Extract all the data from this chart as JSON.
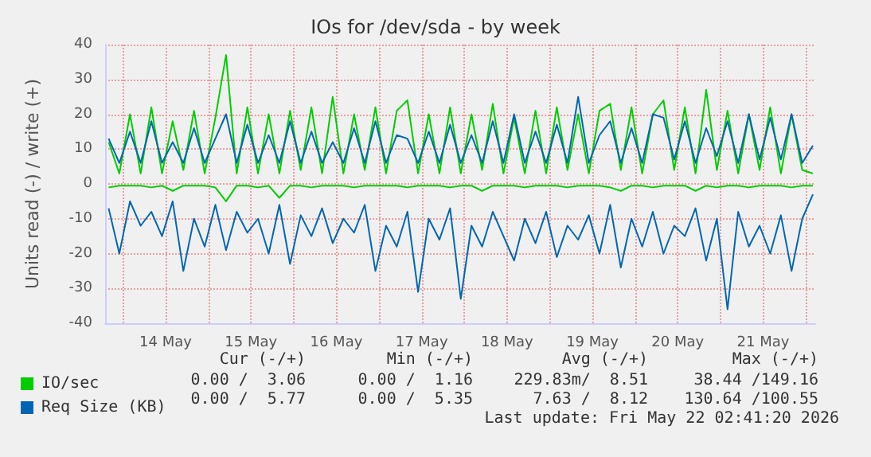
{
  "chart_data": {
    "type": "line",
    "title": "IOs for /dev/sda - by week",
    "ylabel": "Units read (-) / write (+)",
    "x": [
      "2026-05-13T20:00",
      "2026-05-13T23:00",
      "2026-05-14T02:00",
      "2026-05-14T05:00",
      "2026-05-14T08:00",
      "2026-05-14T11:00",
      "2026-05-14T14:00",
      "2026-05-14T17:00",
      "2026-05-14T20:00",
      "2026-05-14T23:00",
      "2026-05-15T02:00",
      "2026-05-15T05:00",
      "2026-05-15T08:00",
      "2026-05-15T11:00",
      "2026-05-15T14:00",
      "2026-05-15T17:00",
      "2026-05-15T20:00",
      "2026-05-15T23:00",
      "2026-05-16T02:00",
      "2026-05-16T05:00",
      "2026-05-16T08:00",
      "2026-05-16T11:00",
      "2026-05-16T14:00",
      "2026-05-16T17:00",
      "2026-05-16T20:00",
      "2026-05-16T23:00",
      "2026-05-17T02:00",
      "2026-05-17T05:00",
      "2026-05-17T08:00",
      "2026-05-17T11:00",
      "2026-05-17T14:00",
      "2026-05-17T17:00",
      "2026-05-17T20:00",
      "2026-05-17T23:00",
      "2026-05-18T02:00",
      "2026-05-18T05:00",
      "2026-05-18T08:00",
      "2026-05-18T11:00",
      "2026-05-18T14:00",
      "2026-05-18T17:00",
      "2026-05-18T20:00",
      "2026-05-18T23:00",
      "2026-05-19T02:00",
      "2026-05-19T05:00",
      "2026-05-19T08:00",
      "2026-05-19T11:00",
      "2026-05-19T14:00",
      "2026-05-19T17:00",
      "2026-05-19T20:00",
      "2026-05-19T23:00",
      "2026-05-20T02:00",
      "2026-05-20T05:00",
      "2026-05-20T08:00",
      "2026-05-20T11:00",
      "2026-05-20T14:00",
      "2026-05-20T17:00",
      "2026-05-20T20:00",
      "2026-05-20T23:00",
      "2026-05-21T02:00",
      "2026-05-21T05:00",
      "2026-05-21T08:00",
      "2026-05-21T11:00",
      "2026-05-21T14:00",
      "2026-05-21T17:00",
      "2026-05-21T20:00",
      "2026-05-21T23:00",
      "2026-05-22T02:00"
    ],
    "series": [
      {
        "color": "#00cc00",
        "values": [
          -1,
          -0.5,
          -0.5,
          -0.5,
          -1,
          -0.5,
          -2,
          -0.5,
          -0.5,
          -0.5,
          -1,
          -5,
          -0.5,
          -0.5,
          -1,
          -0.5,
          -4,
          -0.5,
          -0.5,
          -1,
          -0.5,
          -0.5,
          -0.5,
          -1,
          -0.5,
          -0.5,
          -0.5,
          -0.5,
          -1,
          -0.5,
          -0.5,
          -0.5,
          -1,
          -0.5,
          -0.5,
          -2,
          -0.5,
          -0.5,
          -0.5,
          -1,
          -0.5,
          -0.5,
          -0.5,
          -1,
          -0.5,
          -0.5,
          -0.5,
          -1,
          -2,
          -0.5,
          -0.5,
          -1,
          -0.5,
          -0.5,
          -0.5,
          -2,
          -0.5,
          -1,
          -0.5,
          -0.5,
          -1,
          -0.5,
          -0.5,
          -0.5,
          -1,
          -0.5,
          -0.5
        ]
      },
      {
        "name": "IO/sec",
        "color": "#00cc00",
        "values": [
          12,
          3,
          20,
          3,
          22,
          3,
          18,
          4,
          21,
          3,
          19,
          37,
          3,
          22,
          3,
          20,
          3,
          21,
          4,
          22,
          3,
          25,
          3,
          20,
          4,
          22,
          3,
          21,
          24,
          3,
          20,
          3,
          22,
          3,
          20,
          4,
          23,
          3,
          19,
          3,
          21,
          3,
          22,
          4,
          20,
          3,
          21,
          23,
          4,
          22,
          3,
          20,
          24,
          4,
          22,
          3,
          27,
          4,
          21,
          3,
          20,
          4,
          22,
          3,
          20,
          4,
          3
        ]
      },
      {
        "color": "#0066b3",
        "values": [
          -7,
          -20,
          -5,
          -12,
          -8,
          -15,
          -5,
          -25,
          -10,
          -18,
          -6,
          -19,
          -8,
          -14,
          -10,
          -20,
          -6,
          -23,
          -9,
          -15,
          -7,
          -17,
          -10,
          -14,
          -6,
          -25,
          -12,
          -18,
          -8,
          -31,
          -10,
          -16,
          -7,
          -33,
          -12,
          -18,
          -8,
          -15,
          -22,
          -10,
          -17,
          -8,
          -21,
          -12,
          -16,
          -9,
          -20,
          -6,
          -24,
          -10,
          -18,
          -8,
          -20,
          -12,
          -15,
          -7,
          -22,
          -10,
          -36,
          -8,
          -18,
          -12,
          -20,
          -9,
          -25,
          -10,
          -3
        ]
      },
      {
        "name": "Req Size (KB)",
        "color": "#0066b3",
        "values": [
          13,
          6,
          15,
          6,
          18,
          6,
          12,
          6,
          16,
          6,
          13,
          20,
          6,
          17,
          6,
          14,
          6,
          18,
          6,
          15,
          6,
          12,
          6,
          16,
          6,
          18,
          6,
          14,
          13,
          6,
          15,
          6,
          17,
          6,
          14,
          6,
          18,
          6,
          20,
          6,
          15,
          6,
          17,
          6,
          25,
          6,
          14,
          18,
          6,
          16,
          6,
          20,
          19,
          7,
          18,
          6,
          16,
          8,
          18,
          6,
          20,
          7,
          19,
          7,
          20,
          6,
          11
        ]
      }
    ],
    "xlim": [
      "2026-05-13T19:00",
      "2026-05-22T02:40"
    ],
    "xticks": [
      {
        "value": "2026-05-14T00:00",
        "label": null
      },
      {
        "value": "2026-05-14T12:00",
        "label": "14 May"
      },
      {
        "value": "2026-05-15T00:00",
        "label": null
      },
      {
        "value": "2026-05-15T12:00",
        "label": "15 May"
      },
      {
        "value": "2026-05-16T00:00",
        "label": null
      },
      {
        "value": "2026-05-16T12:00",
        "label": "16 May"
      },
      {
        "value": "2026-05-17T00:00",
        "label": null
      },
      {
        "value": "2026-05-17T12:00",
        "label": "17 May"
      },
      {
        "value": "2026-05-18T00:00",
        "label": null
      },
      {
        "value": "2026-05-18T12:00",
        "label": "18 May"
      },
      {
        "value": "2026-05-19T00:00",
        "label": null
      },
      {
        "value": "2026-05-19T12:00",
        "label": "19 May"
      },
      {
        "value": "2026-05-20T00:00",
        "label": null
      },
      {
        "value": "2026-05-20T12:00",
        "label": "20 May"
      },
      {
        "value": "2026-05-21T00:00",
        "label": null
      },
      {
        "value": "2026-05-21T12:00",
        "label": "21 May"
      },
      {
        "value": "2026-05-22T00:00",
        "label": null
      }
    ],
    "ylim": [
      -40,
      40
    ],
    "yticks": [
      -40,
      -30,
      -20,
      -10,
      0,
      10,
      20,
      30,
      40
    ],
    "grid": true,
    "legend": "bottom left",
    "marker": "none",
    "line_style": "solid",
    "annotations": [
      "Cur (-/+)",
      "Min (-/+)",
      "Avg (-/+)",
      "Max (-/+)",
      "0.00 /  3.06",
      "0.00 /  1.16",
      "229.83m/  8.51",
      "38.44 /149.16",
      "0.00 /  5.77",
      "0.00 /  5.35",
      "7.63 /  8.12",
      "130.64 /100.55",
      "Last update: Fri May 22 02:41:20 2026"
    ]
  }
}
